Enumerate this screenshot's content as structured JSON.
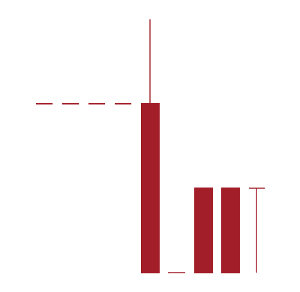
{
  "figure": {
    "color": "#a21e28",
    "background": "#ffffff",
    "elements": [
      {
        "kind": "dashed-leader-line",
        "icon": "dashed-horizontal-line"
      },
      {
        "kind": "tall-bar",
        "icon": "tall-rectangle"
      },
      {
        "kind": "vertical-stem-line",
        "icon": "vertical-line"
      },
      {
        "kind": "baseline-gap-segment",
        "icon": "short-horizontal-line"
      },
      {
        "kind": "short-bar",
        "icon": "rectangle"
      },
      {
        "kind": "short-bar",
        "icon": "rectangle"
      },
      {
        "kind": "height-marker",
        "icon": "t-bar-marker"
      }
    ]
  }
}
